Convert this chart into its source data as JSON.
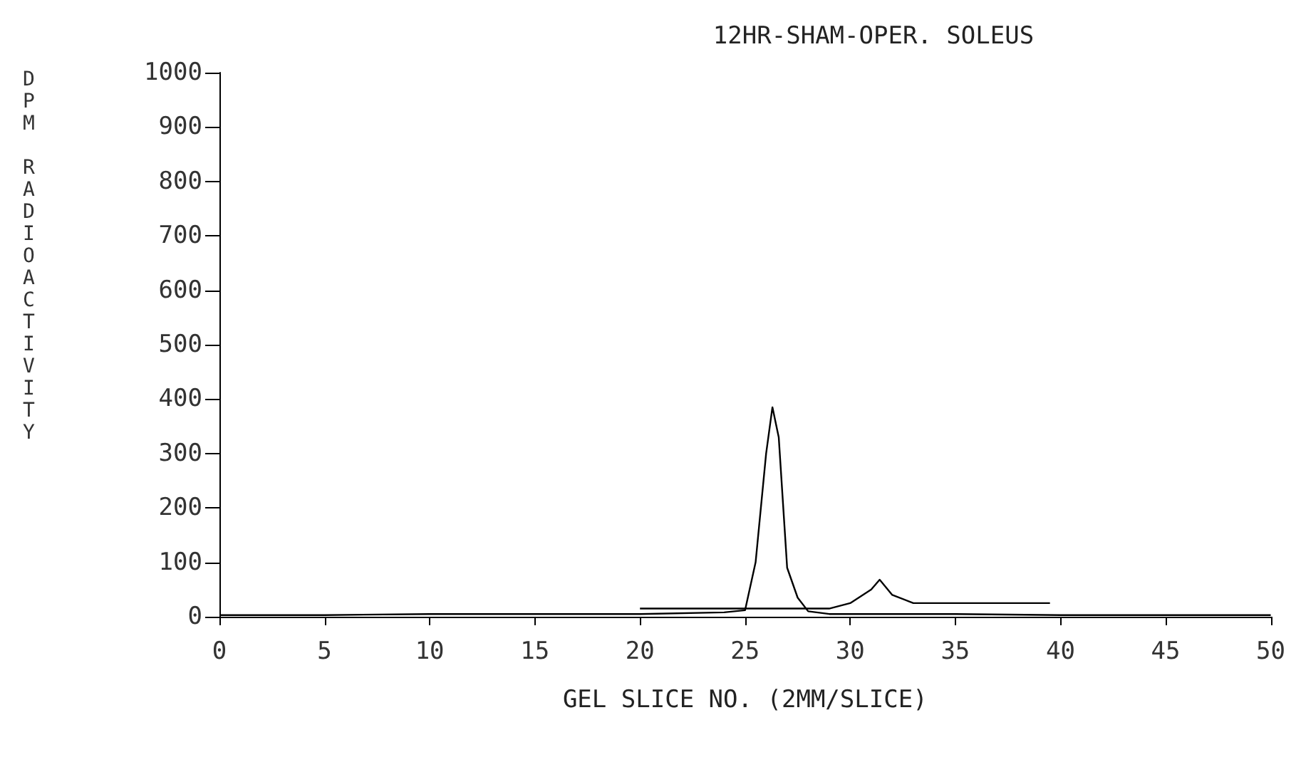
{
  "chart_data": {
    "type": "line",
    "title": "12HR-SHAM-OPER. SOLEUS",
    "xlabel": "GEL SLICE NO. (2MM/SLICE)",
    "ylabel": "DPM RADIOACTIVITY",
    "xlim": [
      0,
      50
    ],
    "xticks": [
      0,
      5,
      10,
      15,
      20,
      25,
      30,
      35,
      40,
      45,
      50
    ],
    "ylim": [
      0,
      1000
    ],
    "yticks": [
      0,
      100,
      200,
      300,
      400,
      500,
      600,
      700,
      800,
      900,
      1000
    ],
    "grid": false,
    "marker": "none",
    "line_style": "solid",
    "series": [
      {
        "color": "#000000",
        "x": [
          0,
          5,
          10,
          15,
          20,
          24,
          25,
          25.5,
          26,
          26.3,
          26.6,
          27,
          27.5,
          28,
          29,
          30,
          32,
          35,
          40,
          45,
          50
        ],
        "values": [
          3,
          3,
          5,
          5,
          5,
          8,
          12,
          100,
          300,
          385,
          330,
          90,
          35,
          10,
          5,
          5,
          5,
          5,
          3,
          3,
          3
        ]
      },
      {
        "color": "#000000",
        "x": [
          20,
          25,
          29,
          30,
          31,
          31.4,
          32,
          33,
          35,
          39.5
        ],
        "values": [
          15,
          15,
          15,
          25,
          50,
          68,
          40,
          25,
          25,
          25
        ]
      }
    ]
  }
}
